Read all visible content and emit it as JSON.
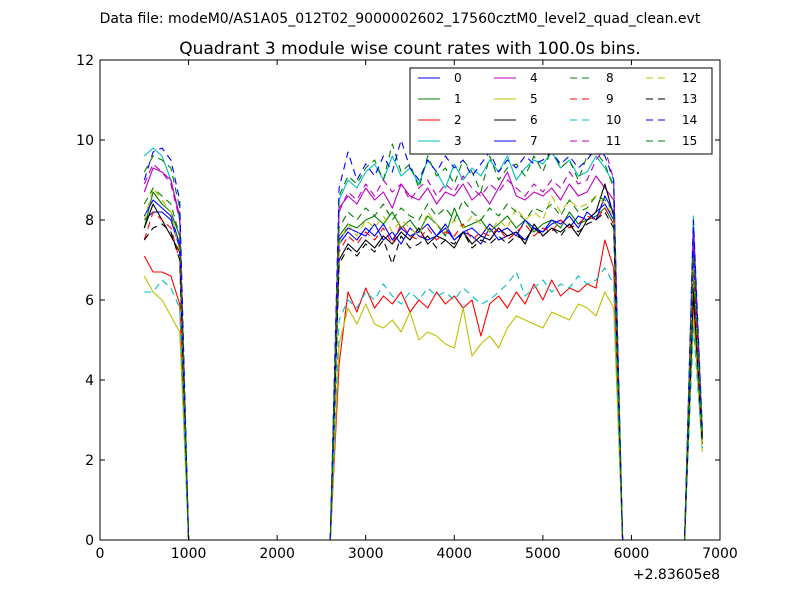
{
  "figure": {
    "suptitle": "Data file: modeM0/AS1A05_012T02_9000002602_17560cztM0_level2_quad_clean.evt"
  },
  "chart_data": {
    "type": "line",
    "title": "Quadrant 3 module wise count rates with 100.0s bins.",
    "xlabel": "",
    "ylabel": "",
    "x_offset_label": "+2.83605e8",
    "xlim": [
      0,
      7000
    ],
    "ylim": [
      0,
      12
    ],
    "xticks": [
      0,
      1000,
      2000,
      3000,
      4000,
      5000,
      6000,
      7000
    ],
    "xtick_labels": [
      "0",
      "1000",
      "2000",
      "3000",
      "4000",
      "5000",
      "6000",
      "7000"
    ],
    "yticks": [
      0,
      2,
      4,
      6,
      8,
      10,
      12
    ],
    "ytick_labels": [
      "0",
      "2",
      "4",
      "6",
      "8",
      "10",
      "12"
    ],
    "grid": false,
    "legend": {
      "placement": "top-right",
      "columns": 4
    },
    "x": [
      500,
      600,
      700,
      800,
      900,
      1000,
      1100,
      1200,
      1300,
      1400,
      1500,
      1600,
      1700,
      1800,
      1900,
      2000,
      2100,
      2200,
      2300,
      2400,
      2500,
      2600,
      2700,
      2800,
      2900,
      3000,
      3100,
      3200,
      3300,
      3400,
      3500,
      3600,
      3700,
      3800,
      3900,
      4000,
      4100,
      4200,
      4300,
      4400,
      4500,
      4600,
      4700,
      4800,
      4900,
      5000,
      5100,
      5200,
      5300,
      5400,
      5500,
      5600,
      5700,
      5800,
      5900,
      6000,
      6100,
      6200,
      6300,
      6400,
      6500,
      6600,
      6700,
      6800
    ],
    "series": [
      {
        "name": "0",
        "color": "#0000ff",
        "dash": "solid",
        "values": [
          8.0,
          8.2,
          8.2,
          8.0,
          7.3,
          0,
          0,
          0,
          0,
          0,
          0,
          0,
          0,
          0,
          0,
          0,
          0,
          0,
          0,
          0,
          0,
          0,
          7.5,
          7.8,
          7.7,
          7.6,
          7.9,
          7.5,
          7.7,
          7.4,
          7.8,
          7.6,
          7.5,
          7.6,
          7.9,
          7.5,
          7.7,
          7.6,
          7.4,
          7.8,
          7.5,
          7.6,
          7.7,
          7.5,
          7.8,
          7.7,
          7.9,
          8.0,
          7.8,
          8.1,
          8.0,
          8.2,
          8.4,
          8.0,
          0,
          0,
          0,
          0,
          0,
          0,
          0,
          0,
          7.5,
          2.6
        ]
      },
      {
        "name": "1",
        "color": "#008000",
        "dash": "solid",
        "values": [
          7.8,
          8.7,
          8.4,
          8.2,
          7.6,
          0,
          0,
          0,
          0,
          0,
          0,
          0,
          0,
          0,
          0,
          0,
          0,
          0,
          0,
          0,
          0,
          0,
          7.6,
          7.9,
          7.8,
          8.0,
          8.1,
          7.9,
          8.2,
          7.8,
          8.0,
          7.7,
          8.1,
          7.9,
          7.6,
          8.3,
          7.8,
          7.9,
          8.0,
          7.7,
          7.9,
          8.1,
          7.8,
          8.0,
          7.7,
          7.9,
          8.0,
          7.8,
          8.2,
          7.9,
          8.0,
          8.1,
          8.3,
          7.9,
          0,
          0,
          0,
          0,
          0,
          0,
          0,
          0,
          7.0,
          2.5
        ]
      },
      {
        "name": "2",
        "color": "#ff0000",
        "dash": "solid",
        "values": [
          7.1,
          6.7,
          6.7,
          6.6,
          5.9,
          0,
          0,
          0,
          0,
          0,
          0,
          0,
          0,
          0,
          0,
          0,
          0,
          0,
          0,
          0,
          0,
          0,
          4.4,
          6.2,
          5.7,
          6.3,
          5.8,
          6.1,
          5.9,
          6.2,
          5.7,
          6.0,
          5.8,
          6.2,
          5.9,
          6.1,
          5.8,
          6.0,
          5.1,
          5.9,
          6.1,
          5.8,
          6.2,
          5.9,
          6.4,
          6.0,
          6.5,
          6.1,
          6.3,
          6.2,
          6.4,
          6.3,
          7.5,
          6.8,
          0,
          0,
          0,
          0,
          0,
          0,
          0,
          0,
          6.0,
          2.4
        ]
      },
      {
        "name": "3",
        "color": "#00bfbf",
        "dash": "solid",
        "values": [
          9.6,
          9.8,
          9.6,
          9.0,
          8.0,
          0,
          0,
          0,
          0,
          0,
          0,
          0,
          0,
          0,
          0,
          0,
          0,
          0,
          0,
          0,
          0,
          0,
          8.5,
          9.0,
          8.8,
          9.2,
          9.4,
          9.0,
          9.6,
          9.1,
          9.3,
          8.9,
          9.5,
          9.2,
          8.8,
          9.4,
          9.0,
          9.3,
          9.1,
          9.5,
          9.2,
          9.6,
          9.0,
          9.3,
          9.5,
          9.4,
          9.7,
          9.3,
          9.5,
          9.1,
          9.2,
          9.6,
          9.3,
          8.9,
          0,
          0,
          0,
          0,
          0,
          0,
          0,
          0,
          8.1,
          2.6
        ]
      },
      {
        "name": "4",
        "color": "#bf00bf",
        "dash": "solid",
        "values": [
          8.7,
          9.3,
          9.2,
          9.0,
          8.1,
          0,
          0,
          0,
          0,
          0,
          0,
          0,
          0,
          0,
          0,
          0,
          0,
          0,
          0,
          0,
          0,
          0,
          8.3,
          8.6,
          8.4,
          8.8,
          8.5,
          8.7,
          8.3,
          8.9,
          8.6,
          8.5,
          8.8,
          8.4,
          8.7,
          8.6,
          8.9,
          8.5,
          8.7,
          8.4,
          8.8,
          9.2,
          8.6,
          8.5,
          8.7,
          8.6,
          8.8,
          8.5,
          8.9,
          8.6,
          8.7,
          9.1,
          8.8,
          8.5,
          0,
          0,
          0,
          0,
          0,
          0,
          0,
          0,
          7.8,
          2.7
        ]
      },
      {
        "name": "5",
        "color": "#bfbf00",
        "dash": "solid",
        "values": [
          6.6,
          6.2,
          6.0,
          5.6,
          5.2,
          0,
          0,
          0,
          0,
          0,
          0,
          0,
          0,
          0,
          0,
          0,
          0,
          0,
          0,
          0,
          0,
          0,
          4.9,
          5.8,
          5.4,
          5.9,
          5.4,
          5.3,
          5.5,
          5.2,
          5.7,
          5.0,
          5.2,
          5.1,
          4.9,
          4.8,
          5.8,
          4.6,
          4.9,
          5.1,
          4.8,
          5.3,
          5.6,
          5.5,
          5.4,
          5.3,
          5.7,
          5.6,
          5.5,
          5.9,
          5.8,
          5.6,
          6.2,
          5.8,
          0,
          0,
          0,
          0,
          0,
          0,
          0,
          0,
          5.6,
          2.2
        ]
      },
      {
        "name": "6",
        "color": "#000000",
        "dash": "solid",
        "values": [
          7.8,
          8.4,
          8.0,
          7.6,
          7.2,
          0,
          0,
          0,
          0,
          0,
          0,
          0,
          0,
          0,
          0,
          0,
          0,
          0,
          0,
          0,
          0,
          0,
          7.0,
          7.4,
          7.2,
          7.5,
          7.3,
          7.6,
          7.4,
          7.7,
          7.5,
          7.8,
          7.4,
          7.6,
          7.5,
          7.3,
          7.7,
          7.4,
          7.6,
          7.5,
          7.8,
          7.6,
          7.7,
          7.4,
          7.9,
          7.6,
          7.8,
          7.7,
          7.9,
          7.6,
          8.0,
          8.2,
          8.9,
          8.1,
          0,
          0,
          0,
          0,
          0,
          0,
          0,
          0,
          6.3,
          2.5
        ]
      },
      {
        "name": "7",
        "color": "#0000ff",
        "dash": "solid",
        "values": [
          8.1,
          8.5,
          8.3,
          8.1,
          7.4,
          0,
          0,
          0,
          0,
          0,
          0,
          0,
          0,
          0,
          0,
          0,
          0,
          0,
          0,
          0,
          0,
          0,
          7.4,
          7.7,
          7.5,
          7.8,
          7.6,
          7.9,
          7.5,
          7.8,
          7.6,
          7.7,
          7.9,
          7.6,
          7.8,
          7.5,
          7.7,
          7.8,
          7.6,
          7.9,
          7.7,
          7.8,
          7.6,
          8.0,
          7.8,
          7.7,
          8.0,
          7.9,
          8.1,
          7.8,
          8.2,
          8.0,
          8.6,
          8.2,
          0,
          0,
          0,
          0,
          0,
          0,
          0,
          0,
          7.3,
          2.6
        ]
      },
      {
        "name": "8",
        "color": "#008000",
        "dash": "dashed",
        "values": [
          9.2,
          9.6,
          9.5,
          9.3,
          8.3,
          0,
          0,
          0,
          0,
          0,
          0,
          0,
          0,
          0,
          0,
          0,
          0,
          0,
          0,
          0,
          0,
          0,
          8.6,
          9.1,
          8.9,
          9.3,
          9.5,
          9.0,
          9.9,
          9.2,
          9.4,
          8.8,
          9.6,
          9.1,
          9.3,
          8.9,
          9.5,
          9.2,
          8.7,
          9.6,
          9.0,
          9.3,
          9.4,
          9.1,
          9.6,
          9.2,
          9.8,
          9.3,
          9.5,
          9.0,
          9.6,
          9.7,
          9.4,
          8.8,
          0,
          0,
          0,
          0,
          0,
          0,
          0,
          0,
          6.5,
          2.6
        ]
      },
      {
        "name": "9",
        "color": "#ff0000",
        "dash": "dashed",
        "values": [
          7.5,
          8.2,
          8.0,
          7.8,
          7.0,
          0,
          0,
          0,
          0,
          0,
          0,
          0,
          0,
          0,
          0,
          0,
          0,
          0,
          0,
          0,
          0,
          0,
          7.2,
          7.6,
          7.4,
          7.7,
          7.5,
          7.8,
          7.4,
          7.9,
          7.6,
          7.5,
          7.8,
          7.5,
          7.7,
          7.6,
          7.9,
          7.5,
          7.7,
          7.6,
          7.8,
          7.5,
          7.7,
          7.9,
          7.6,
          7.8,
          7.7,
          8.0,
          7.8,
          7.9,
          8.1,
          8.0,
          8.3,
          7.9,
          0,
          0,
          0,
          0,
          0,
          0,
          0,
          0,
          6.8,
          2.5
        ]
      },
      {
        "name": "10",
        "color": "#00bfbf",
        "dash": "dashed",
        "values": [
          6.2,
          6.2,
          6.5,
          6.3,
          5.8,
          0,
          0,
          0,
          0,
          0,
          0,
          0,
          0,
          0,
          0,
          0,
          0,
          0,
          0,
          0,
          0,
          0,
          5.5,
          6.0,
          5.8,
          6.2,
          6.0,
          6.4,
          6.1,
          5.9,
          6.2,
          6.0,
          6.3,
          6.1,
          6.2,
          6.0,
          6.3,
          6.1,
          5.9,
          6.0,
          6.2,
          6.4,
          6.7,
          6.1,
          6.3,
          6.5,
          6.2,
          6.4,
          6.3,
          6.6,
          6.4,
          6.5,
          6.8,
          6.4,
          0,
          0,
          0,
          0,
          0,
          0,
          0,
          0,
          5.3,
          2.3
        ]
      },
      {
        "name": "11",
        "color": "#bf00bf",
        "dash": "dashed",
        "values": [
          8.9,
          9.4,
          9.2,
          8.9,
          8.0,
          0,
          0,
          0,
          0,
          0,
          0,
          0,
          0,
          0,
          0,
          0,
          0,
          0,
          0,
          0,
          0,
          0,
          8.2,
          8.7,
          8.5,
          8.9,
          8.6,
          9.0,
          8.7,
          8.9,
          8.5,
          8.8,
          9.0,
          8.6,
          8.9,
          8.7,
          9.1,
          8.8,
          8.6,
          8.9,
          8.7,
          9.0,
          8.8,
          8.6,
          8.9,
          8.7,
          9.0,
          8.8,
          9.2,
          8.9,
          9.0,
          9.5,
          9.8,
          9.0,
          0,
          0,
          0,
          0,
          0,
          0,
          0,
          0,
          7.6,
          2.7
        ]
      },
      {
        "name": "12",
        "color": "#bfbf00",
        "dash": "dashed",
        "values": [
          8.0,
          8.8,
          8.5,
          8.2,
          7.2,
          0,
          0,
          0,
          0,
          0,
          0,
          0,
          0,
          0,
          0,
          0,
          0,
          0,
          0,
          0,
          0,
          0,
          7.4,
          7.9,
          7.6,
          8.0,
          7.8,
          8.1,
          7.7,
          8.0,
          7.8,
          7.6,
          8.2,
          7.9,
          7.7,
          8.0,
          7.8,
          8.1,
          7.9,
          7.7,
          8.0,
          7.8,
          8.3,
          8.0,
          8.2,
          8.0,
          8.6,
          8.2,
          8.5,
          8.3,
          8.4,
          8.6,
          8.4,
          8.1,
          0,
          0,
          0,
          0,
          0,
          0,
          0,
          0,
          7.0,
          2.4
        ]
      },
      {
        "name": "13",
        "color": "#000000",
        "dash": "dashed",
        "values": [
          7.5,
          7.8,
          7.9,
          7.7,
          7.0,
          0,
          0,
          0,
          0,
          0,
          0,
          0,
          0,
          0,
          0,
          0,
          0,
          0,
          0,
          0,
          0,
          0,
          6.9,
          7.3,
          7.1,
          7.4,
          7.2,
          7.5,
          6.9,
          7.6,
          7.3,
          7.4,
          7.6,
          7.3,
          7.5,
          7.4,
          7.7,
          7.3,
          7.5,
          7.4,
          7.6,
          7.4,
          7.6,
          7.5,
          7.8,
          7.6,
          7.8,
          7.6,
          7.9,
          7.7,
          7.9,
          8.0,
          8.2,
          7.8,
          0,
          0,
          0,
          0,
          0,
          0,
          0,
          0,
          6.2,
          2.4
        ]
      },
      {
        "name": "14",
        "color": "#0000ff",
        "dash": "dashed",
        "values": [
          9.0,
          9.7,
          9.8,
          9.5,
          8.5,
          0,
          0,
          0,
          0,
          0,
          0,
          0,
          0,
          0,
          0,
          0,
          0,
          0,
          0,
          0,
          0,
          0,
          8.8,
          9.7,
          9.0,
          9.4,
          9.1,
          9.6,
          9.2,
          10.0,
          9.3,
          9.0,
          9.5,
          9.2,
          9.6,
          9.3,
          9.5,
          9.1,
          9.4,
          9.7,
          9.2,
          9.5,
          9.3,
          9.6,
          9.4,
          9.5,
          9.7,
          9.4,
          9.6,
          9.3,
          9.5,
          9.8,
          9.6,
          9.0,
          0,
          0,
          0,
          0,
          0,
          0,
          0,
          0,
          8.0,
          2.8
        ]
      },
      {
        "name": "15",
        "color": "#008000",
        "dash": "dashed",
        "values": [
          8.4,
          8.8,
          8.6,
          8.4,
          7.6,
          0,
          0,
          0,
          0,
          0,
          0,
          0,
          0,
          0,
          0,
          0,
          0,
          0,
          0,
          0,
          0,
          0,
          7.8,
          8.2,
          8.0,
          8.3,
          8.1,
          8.4,
          8.0,
          8.3,
          8.1,
          8.0,
          8.4,
          8.1,
          8.3,
          8.0,
          8.5,
          8.2,
          8.0,
          8.3,
          8.1,
          8.4,
          8.2,
          8.0,
          8.3,
          8.2,
          8.4,
          8.1,
          8.5,
          8.2,
          8.3,
          8.6,
          8.5,
          8.2,
          0,
          0,
          0,
          0,
          0,
          0,
          0,
          0,
          7.1,
          2.6
        ]
      }
    ]
  }
}
